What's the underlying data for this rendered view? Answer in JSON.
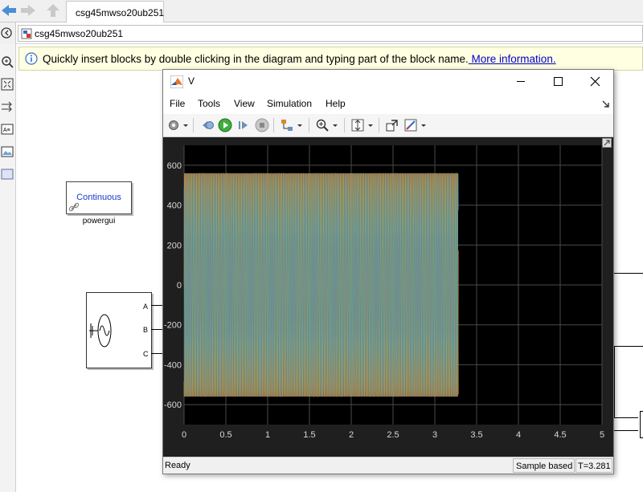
{
  "tab": {
    "label": "csg45mwso20ub251"
  },
  "address": {
    "path": "csg45mwso20ub251"
  },
  "infobar": {
    "message": "Quickly insert blocks by double clicking in the diagram and typing part of the block name.",
    "link": " More information."
  },
  "blocks": {
    "powergui_text": "Continuous",
    "powergui_label": "powergui",
    "ports": [
      "A",
      "B",
      "C"
    ]
  },
  "scope": {
    "title": "V",
    "menu": [
      "File",
      "Tools",
      "View",
      "Simulation",
      "Help"
    ],
    "status": {
      "ready": "Ready",
      "mode": "Sample based",
      "time": "T=3.281"
    },
    "plot_bg": "#000000",
    "trace_color": "#f26b2e"
  },
  "chart_data": {
    "type": "line",
    "title": "",
    "xlabel": "",
    "ylabel": "",
    "xlim": [
      0,
      5
    ],
    "ylim": [
      -700,
      700
    ],
    "x_ticks": [
      "0",
      "0.5",
      "1",
      "1.5",
      "2",
      "2.5",
      "3",
      "3.5",
      "4",
      "4.5",
      "5"
    ],
    "y_ticks": [
      "600",
      "400",
      "200",
      "0",
      "-200",
      "-400",
      "-600"
    ],
    "grid": true,
    "series": [
      {
        "amplitude": 560,
        "frequency_hz": 50,
        "phase_deg": 0,
        "t_start": 0,
        "t_end": 3.281,
        "color": "#f26b2e"
      },
      {
        "amplitude": 560,
        "frequency_hz": 50,
        "phase_deg": -120,
        "t_start": 0,
        "t_end": 3.281,
        "color": "#e8b400"
      },
      {
        "amplitude": 560,
        "frequency_hz": 50,
        "phase_deg": 120,
        "t_start": 0,
        "t_end": 3.281,
        "color": "#2c8fd8"
      }
    ]
  }
}
